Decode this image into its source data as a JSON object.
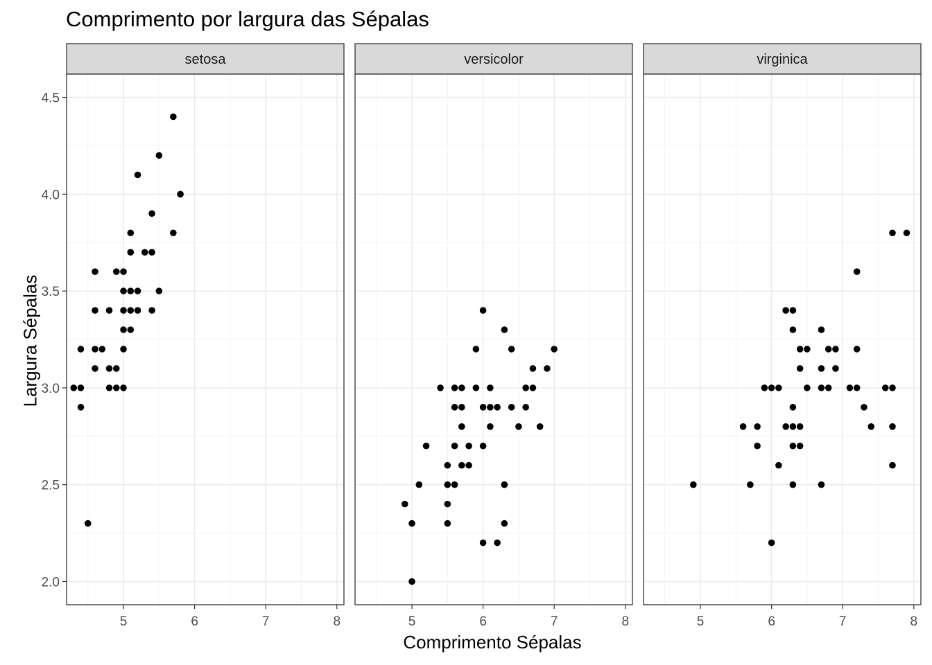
{
  "chart_data": {
    "type": "scatter",
    "title": "Comprimento por largura das Sépalas",
    "xlabel": "Comprimento Sépalas",
    "ylabel": "Largura Sépalas",
    "xlim": [
      4.2,
      8.1
    ],
    "ylim": [
      1.88,
      4.62
    ],
    "x_ticks": [
      "5",
      "6",
      "7",
      "8"
    ],
    "y_ticks": [
      "2.0",
      "2.5",
      "3.0",
      "3.5",
      "4.0",
      "4.5"
    ],
    "grid": true,
    "legend": "none",
    "point_color": "#000000",
    "panels": [
      {
        "name": "setosa",
        "points": [
          [
            4.3,
            3.0
          ],
          [
            4.4,
            3.0
          ],
          [
            4.4,
            2.9
          ],
          [
            4.4,
            3.2
          ],
          [
            4.5,
            2.3
          ],
          [
            4.6,
            3.6
          ],
          [
            4.6,
            3.4
          ],
          [
            4.6,
            3.2
          ],
          [
            4.6,
            3.1
          ],
          [
            4.7,
            3.2
          ],
          [
            4.8,
            3.4
          ],
          [
            4.8,
            3.1
          ],
          [
            4.8,
            3.0
          ],
          [
            4.9,
            3.6
          ],
          [
            4.9,
            3.1
          ],
          [
            4.9,
            3.0
          ],
          [
            5.0,
            3.6
          ],
          [
            5.0,
            3.5
          ],
          [
            5.0,
            3.4
          ],
          [
            5.0,
            3.3
          ],
          [
            5.0,
            3.2
          ],
          [
            5.0,
            3.0
          ],
          [
            5.1,
            3.8
          ],
          [
            5.1,
            3.7
          ],
          [
            5.1,
            3.5
          ],
          [
            5.1,
            3.4
          ],
          [
            5.1,
            3.3
          ],
          [
            5.2,
            4.1
          ],
          [
            5.2,
            3.5
          ],
          [
            5.2,
            3.4
          ],
          [
            5.3,
            3.7
          ],
          [
            5.4,
            3.9
          ],
          [
            5.4,
            3.7
          ],
          [
            5.4,
            3.4
          ],
          [
            5.5,
            4.2
          ],
          [
            5.5,
            3.5
          ],
          [
            5.7,
            4.4
          ],
          [
            5.7,
            3.8
          ],
          [
            5.8,
            4.0
          ]
        ]
      },
      {
        "name": "versicolor",
        "points": [
          [
            4.9,
            2.4
          ],
          [
            5.0,
            2.3
          ],
          [
            5.0,
            2.0
          ],
          [
            5.1,
            2.5
          ],
          [
            5.2,
            2.7
          ],
          [
            5.4,
            3.0
          ],
          [
            5.5,
            2.6
          ],
          [
            5.5,
            2.5
          ],
          [
            5.5,
            2.4
          ],
          [
            5.5,
            2.3
          ],
          [
            5.6,
            3.0
          ],
          [
            5.6,
            2.9
          ],
          [
            5.6,
            2.7
          ],
          [
            5.6,
            2.5
          ],
          [
            5.7,
            3.0
          ],
          [
            5.7,
            2.9
          ],
          [
            5.7,
            2.8
          ],
          [
            5.7,
            2.6
          ],
          [
            5.8,
            2.7
          ],
          [
            5.8,
            2.6
          ],
          [
            5.9,
            3.2
          ],
          [
            5.9,
            3.0
          ],
          [
            6.0,
            3.4
          ],
          [
            6.0,
            2.9
          ],
          [
            6.0,
            2.7
          ],
          [
            6.0,
            2.2
          ],
          [
            6.1,
            3.0
          ],
          [
            6.1,
            2.9
          ],
          [
            6.1,
            2.8
          ],
          [
            6.2,
            2.9
          ],
          [
            6.2,
            2.2
          ],
          [
            6.3,
            3.3
          ],
          [
            6.3,
            2.5
          ],
          [
            6.3,
            2.3
          ],
          [
            6.4,
            3.2
          ],
          [
            6.4,
            2.9
          ],
          [
            6.5,
            2.8
          ],
          [
            6.6,
            3.0
          ],
          [
            6.6,
            2.9
          ],
          [
            6.7,
            3.1
          ],
          [
            6.7,
            3.0
          ],
          [
            6.8,
            2.8
          ],
          [
            6.9,
            3.1
          ],
          [
            7.0,
            3.2
          ]
        ]
      },
      {
        "name": "virginica",
        "points": [
          [
            4.9,
            2.5
          ],
          [
            5.6,
            2.8
          ],
          [
            5.7,
            2.5
          ],
          [
            5.8,
            2.8
          ],
          [
            5.8,
            2.7
          ],
          [
            5.9,
            3.0
          ],
          [
            6.0,
            3.0
          ],
          [
            6.0,
            2.2
          ],
          [
            6.1,
            3.0
          ],
          [
            6.1,
            2.6
          ],
          [
            6.2,
            3.4
          ],
          [
            6.2,
            2.8
          ],
          [
            6.3,
            3.4
          ],
          [
            6.3,
            3.3
          ],
          [
            6.3,
            2.9
          ],
          [
            6.3,
            2.8
          ],
          [
            6.3,
            2.7
          ],
          [
            6.3,
            2.5
          ],
          [
            6.4,
            3.2
          ],
          [
            6.4,
            3.1
          ],
          [
            6.4,
            2.8
          ],
          [
            6.4,
            2.7
          ],
          [
            6.5,
            3.2
          ],
          [
            6.5,
            3.0
          ],
          [
            6.7,
            3.3
          ],
          [
            6.7,
            3.1
          ],
          [
            6.7,
            3.0
          ],
          [
            6.7,
            2.5
          ],
          [
            6.8,
            3.2
          ],
          [
            6.8,
            3.0
          ],
          [
            6.9,
            3.2
          ],
          [
            6.9,
            3.1
          ],
          [
            7.1,
            3.0
          ],
          [
            7.2,
            3.6
          ],
          [
            7.2,
            3.2
          ],
          [
            7.2,
            3.0
          ],
          [
            7.3,
            2.9
          ],
          [
            7.4,
            2.8
          ],
          [
            7.6,
            3.0
          ],
          [
            7.7,
            3.8
          ],
          [
            7.7,
            3.0
          ],
          [
            7.7,
            2.8
          ],
          [
            7.7,
            2.6
          ],
          [
            7.9,
            3.8
          ]
        ]
      }
    ]
  }
}
